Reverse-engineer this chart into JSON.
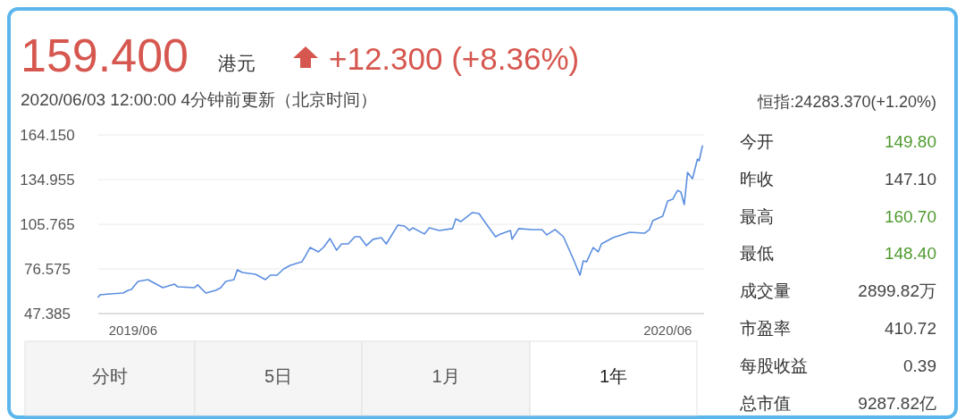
{
  "chart_data": {
    "type": "line",
    "title": "159.400",
    "subtitle": "2020/06/03 12:00:00  4分钟前更新（北京时间）",
    "annotations": [
      "港元",
      "+12.300 (+8.36%)",
      "恒指:24283.370(+1.20%)",
      "今开",
      "149.80",
      "昨收",
      "147.10",
      "最高",
      "160.70",
      "最低",
      "148.40",
      "成交量",
      "2899.82万",
      "市盈率",
      "410.72",
      "每股收益",
      "0.39",
      "总市值",
      "9287.82亿",
      "分时",
      "5日",
      "1月",
      "1年"
    ],
    "x": [
      "2019-06-03",
      "2019-06-04",
      "2019-06-10",
      "2019-06-18",
      "2019-06-21",
      "2019-06-23",
      "2019-06-27",
      "2019-07-03",
      "2019-07-07",
      "2019-07-12",
      "2019-07-19",
      "2019-07-21",
      "2019-07-31",
      "2019-08-02",
      "2019-08-07",
      "2019-08-13",
      "2019-08-16",
      "2019-08-19",
      "2019-08-24",
      "2019-08-26",
      "2019-08-29",
      "2019-09-06",
      "2019-09-12",
      "2019-09-15",
      "2019-09-19",
      "2019-09-23",
      "2019-09-27",
      "2019-10-04",
      "2019-10-06",
      "2019-10-09",
      "2019-10-14",
      "2019-10-17",
      "2019-10-21",
      "2019-10-25",
      "2019-10-28",
      "2019-11-01",
      "2019-11-05",
      "2019-11-08",
      "2019-11-12",
      "2019-11-16",
      "2019-11-21",
      "2019-11-24",
      "2019-12-01",
      "2019-12-05",
      "2019-12-08",
      "2019-12-10",
      "2019-12-17",
      "2019-12-20",
      "2019-12-26",
      "2020-01-03",
      "2020-01-05",
      "2020-01-08",
      "2020-01-15",
      "2020-01-19",
      "2020-01-22",
      "2020-01-29",
      "2020-02-01",
      "2020-02-07",
      "2020-02-08",
      "2020-02-12",
      "2020-02-20",
      "2020-02-26",
      "2020-02-29",
      "2020-03-05",
      "2020-03-10",
      "2020-03-16",
      "2020-03-20",
      "2020-03-22",
      "2020-03-24",
      "2020-03-28",
      "2020-03-31",
      "2020-04-02",
      "2020-04-09",
      "2020-04-19",
      "2020-04-28",
      "2020-05-01",
      "2020-05-03",
      "2020-05-09",
      "2020-05-12",
      "2020-05-15",
      "2020-05-18",
      "2020-05-20",
      "2020-05-22",
      "2020-05-24",
      "2020-05-27",
      "2020-05-30",
      "2020-05-31",
      "2020-06-02"
    ],
    "series": [
      {
        "color": "#5b8ee0",
        "values": [
          58.1,
          59.6,
          60.2,
          60.8,
          62.6,
          63.1,
          68.4,
          69.6,
          67.2,
          64.3,
          66.6,
          64.9,
          64.3,
          66.1,
          60.8,
          62.6,
          64.3,
          68.4,
          69.6,
          76.0,
          74.2,
          73.1,
          69.6,
          72.5,
          72.5,
          76.6,
          78.9,
          81.2,
          84.8,
          90.6,
          87.7,
          90.6,
          96.4,
          88.8,
          92.9,
          92.9,
          97.6,
          97.6,
          91.8,
          95.9,
          97.0,
          92.9,
          105.2,
          104.6,
          101.7,
          103.4,
          99.4,
          103.4,
          101.7,
          102.9,
          109.3,
          107.5,
          113.4,
          112.8,
          108.1,
          97.6,
          99.4,
          101.7,
          95.9,
          102.9,
          102.3,
          102.3,
          98.8,
          102.3,
          97.6,
          83.0,
          72.5,
          81.8,
          81.2,
          90.6,
          87.7,
          92.9,
          97.0,
          100.5,
          99.9,
          102.3,
          108.1,
          111.0,
          120.9,
          122.1,
          127.9,
          126.8,
          118.6,
          139.6,
          135.5,
          148.4,
          147.2,
          157.0
        ]
      }
    ],
    "xlim": [
      "2019-06-03",
      "2020-06-03"
    ],
    "xticks": [
      {
        "value": "2019-06-24",
        "label": "2019/06"
      },
      {
        "value": "2020-05-12",
        "label": "2020/06"
      }
    ],
    "ylim": [
      47.385,
      164.15
    ],
    "yticks": [
      {
        "value": 47.385,
        "label": "47.385"
      },
      {
        "value": 76.575,
        "label": "76.575"
      },
      {
        "value": 105.765,
        "label": "105.765"
      },
      {
        "value": 134.955,
        "label": "134.955"
      },
      {
        "value": 164.15,
        "label": "164.150"
      }
    ],
    "grid": "y",
    "marker": "none",
    "line_style": "solid"
  }
}
